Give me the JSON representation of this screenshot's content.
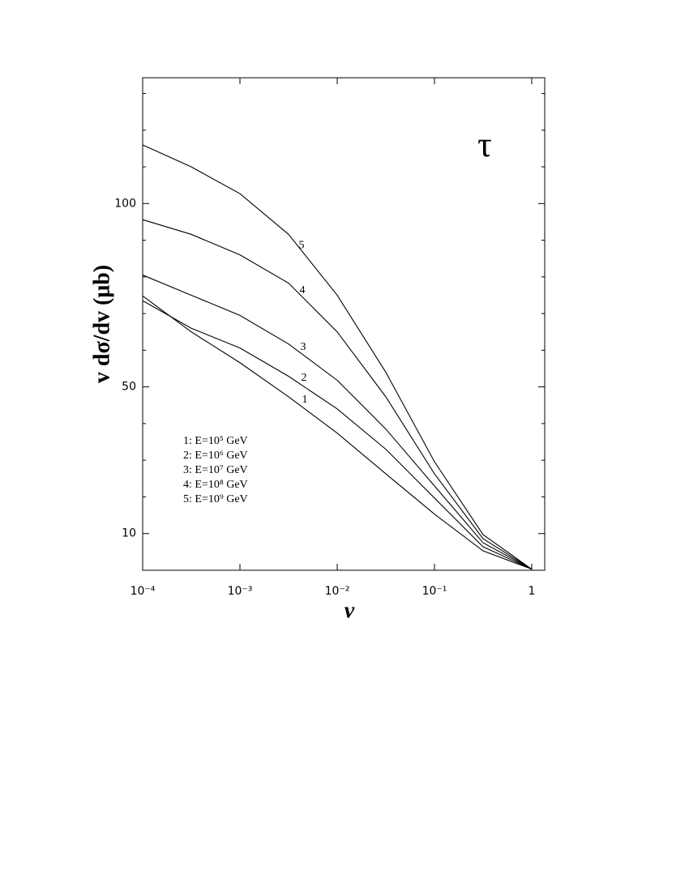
{
  "chart_data": {
    "type": "line",
    "annotation": "τ",
    "xlabel": "v",
    "ylabel": "v dσ/dv (μb)",
    "x": [
      0.0001,
      0.000316,
      0.001,
      0.00316,
      0.01,
      0.0316,
      0.1,
      0.316,
      1
    ],
    "series": [
      {
        "name": "1: E=10⁵ GeV",
        "label": "1",
        "color": "#000000",
        "values": [
          74.8,
          65,
          56.6,
          47.3,
          37.4,
          26.3,
          15.3,
          5.3,
          0.3
        ]
      },
      {
        "name": "2: E=10⁶ GeV",
        "label": "2",
        "color": "#000000",
        "values": [
          73.5,
          66,
          60.6,
          52.9,
          44,
          33,
          19.7,
          6.4,
          0.3
        ]
      },
      {
        "name": "3: E=10⁷ GeV",
        "label": "3",
        "color": "#000000",
        "values": [
          80.5,
          75,
          69.5,
          61.7,
          51.8,
          38.5,
          23,
          7.5,
          0.3
        ]
      },
      {
        "name": "4: E=10⁸ GeV",
        "label": "4",
        "color": "#000000",
        "values": [
          95.6,
          91.6,
          86,
          78.3,
          65,
          47.3,
          26.3,
          8.6,
          0.3
        ]
      },
      {
        "name": "5: E=10⁹ GeV",
        "label": "5",
        "color": "#000000",
        "values": [
          116,
          110,
          102.7,
          91.6,
          75,
          54,
          29.6,
          9.7,
          0.3
        ]
      }
    ],
    "xscale": "log",
    "xlim": [
      0.0001,
      1.36
    ],
    "xticks": [
      {
        "value": 0.0001,
        "label": "10⁻⁴"
      },
      {
        "value": 0.001,
        "label": "10⁻³"
      },
      {
        "value": 0.01,
        "label": "10⁻²"
      },
      {
        "value": 0.1,
        "label": "10⁻¹"
      },
      1
    ],
    "ylim": [
      0,
      134.3
    ],
    "yticks": [
      10,
      50,
      100
    ],
    "y_minor_ticks": [
      20,
      30,
      40,
      60,
      70,
      80,
      90,
      110,
      120,
      130
    ],
    "legend": "lower left",
    "grid": false
  }
}
